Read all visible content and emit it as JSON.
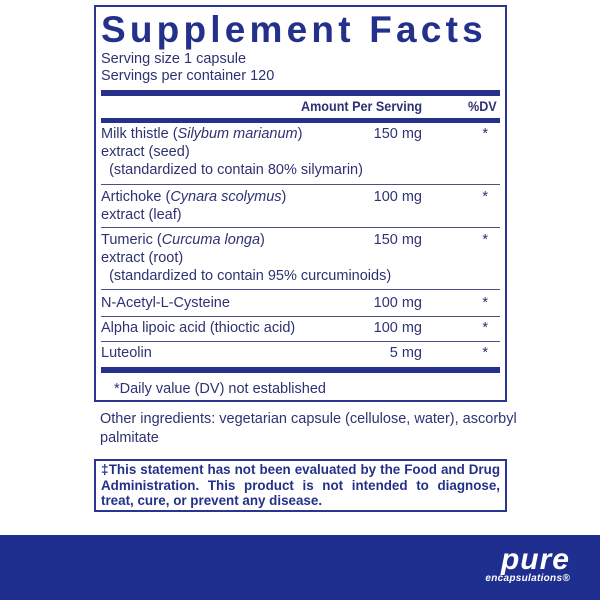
{
  "panel": {
    "title": "Supplement Facts",
    "serving_size": "Serving size  1 capsule",
    "servings_per_container": "Servings per container  120",
    "header": {
      "amount": "Amount Per Serving",
      "dv": "%DV"
    },
    "rows": [
      {
        "line1": "Milk thistle (",
        "italic": "Silybum marianum",
        "line1_end": ")",
        "line2": "extract (seed)",
        "line3": "(standardized to contain 80% silymarin)",
        "amount": "150 mg",
        "dv": "*"
      },
      {
        "line1": "Artichoke (",
        "italic": "Cynara scolymus",
        "line1_end": ")",
        "line2": "extract (leaf)",
        "amount": "100 mg",
        "dv": "*"
      },
      {
        "line1": "Tumeric (",
        "italic": "Curcuma longa",
        "line1_end": ")",
        "line2": "extract (root)",
        "line3": "(standardized to contain 95% curcuminoids)",
        "amount": "150 mg",
        "dv": "*"
      },
      {
        "line1": "N-Acetyl-L-Cysteine",
        "amount": "100 mg",
        "dv": "*"
      },
      {
        "line1": "Alpha lipoic acid (thioctic acid)",
        "amount": "100 mg",
        "dv": "*"
      },
      {
        "line1": "Luteolin",
        "amount": "5 mg",
        "dv": "*"
      }
    ],
    "footnote": "*Daily value (DV) not established"
  },
  "other_ingredients": "Other ingredients: vegetarian capsule (cellulose, water), ascorbyl palmitate",
  "statement": "‡This statement has not been evaluated by the Food and Drug Administration. This product is not intended to diagnose, treat, cure, or prevent any disease.",
  "brand": {
    "name": "pure",
    "sub": "encapsulations®",
    "color": "#1f2f8f"
  }
}
